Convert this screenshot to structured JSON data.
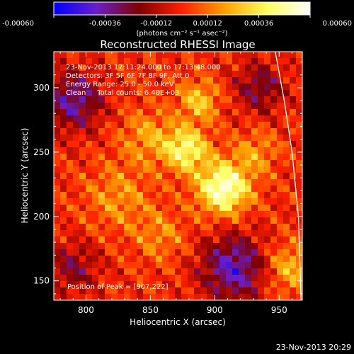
{
  "chart_data": {
    "type": "heatmap",
    "title": "Reconstructed RHESSI Image",
    "xlabel": "Heliocentric X (arcsec)",
    "ylabel": "Heliocentric Y (arcsec)",
    "xlim": [
      775,
      968
    ],
    "ylim": [
      135,
      328
    ],
    "x_ticks": [
      800,
      850,
      900,
      950
    ],
    "y_ticks": [
      150,
      200,
      250,
      300
    ],
    "colorbar": {
      "label": "(photons cm⁻² s⁻¹ asec⁻²)",
      "range": [
        -0.0006,
        0.0006
      ],
      "tick_labels": [
        "-0.00060",
        "-0.00036",
        "-0.00012",
        "0.00012",
        "0.00036",
        "0.00060"
      ],
      "colormap": [
        "#0000ff",
        "#6a1fc8",
        "#800000",
        "#ff2000",
        "#ffa000",
        "#ffff60",
        "#ffffff"
      ]
    },
    "annotations": [
      "23-Nov-2013 17:11:24.000 to 17:13:48.000",
      "Detectors: 3F 5F 6F 7F 8F 9F, Att 0",
      "Energy Range: 25.0 - 50.0 keV",
      "Clean     Total counts: 6.40E+03"
    ],
    "peak_label": "Position of Peak = [907,222]",
    "peak": {
      "x": 907,
      "y": 222,
      "value": 0.0006
    },
    "limb": [
      [
        947,
        328
      ],
      [
        954,
        290
      ],
      [
        960,
        250
      ],
      [
        965,
        200
      ],
      [
        967,
        135
      ]
    ],
    "sources": [
      {
        "x": 907,
        "y": 222,
        "value": 0.00056,
        "sigma": 14
      },
      {
        "x": 878,
        "y": 252,
        "value": 0.00042,
        "sigma": 12
      },
      {
        "x": 888,
        "y": 290,
        "value": 0.00028,
        "sigma": 11
      },
      {
        "x": 848,
        "y": 262,
        "value": 0.0002,
        "sigma": 15
      },
      {
        "x": 825,
        "y": 215,
        "value": 0.00018,
        "sigma": 18
      },
      {
        "x": 958,
        "y": 160,
        "value": 0.00025,
        "sigma": 14
      },
      {
        "x": 932,
        "y": 250,
        "value": 0.00018,
        "sigma": 12
      },
      {
        "x": 858,
        "y": 185,
        "value": 0.00016,
        "sigma": 14
      }
    ],
    "negative_regions": [
      {
        "x": 790,
        "y": 290,
        "value": -0.00035,
        "sigma": 16
      },
      {
        "x": 915,
        "y": 160,
        "value": -0.0004,
        "sigma": 18
      },
      {
        "x": 790,
        "y": 160,
        "value": -0.00022,
        "sigma": 14
      },
      {
        "x": 935,
        "y": 300,
        "value": -0.00025,
        "sigma": 14
      }
    ]
  },
  "footer": {
    "timestamp": "23-Nov-2013 20:29"
  }
}
